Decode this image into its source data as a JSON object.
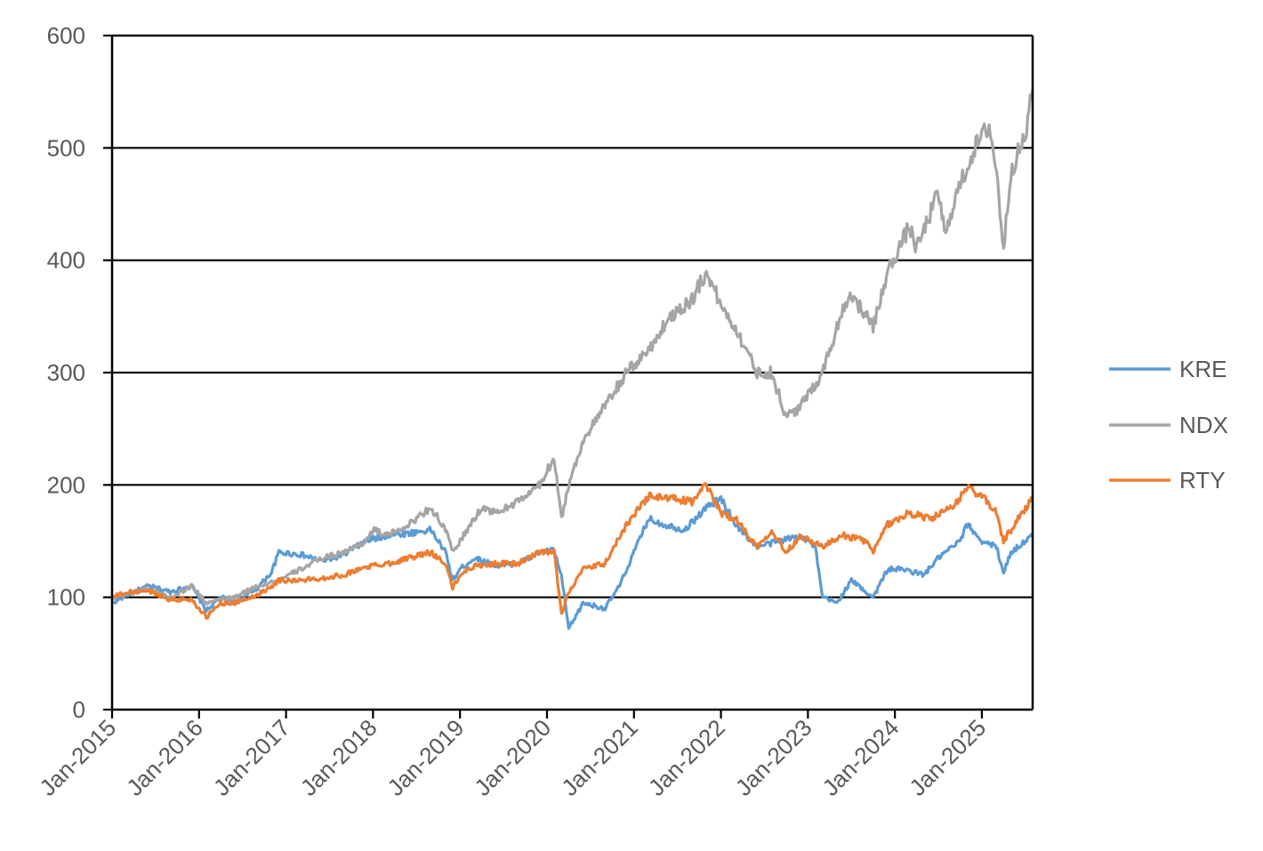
{
  "chart_data": {
    "type": "line",
    "title": "",
    "xlabel": "",
    "ylabel": "",
    "ylim": [
      0,
      600
    ],
    "yticks": [
      0,
      100,
      200,
      300,
      400,
      500,
      600
    ],
    "xlim": [
      "2015-01",
      "2025-08"
    ],
    "xticks": [
      "Jan-2015",
      "Jan-2016",
      "Jan-2017",
      "Jan-2018",
      "Jan-2019",
      "Jan-2020",
      "Jan-2021",
      "Jan-2022",
      "Jan-2023",
      "Jan-2024",
      "Jan-2025"
    ],
    "grid": "horizontal",
    "legend_position": "right",
    "series": [
      {
        "name": "KRE",
        "color": "#5B9BD5",
        "x": [
          "2015-01",
          "2015-03",
          "2015-06",
          "2015-09",
          "2015-12",
          "2016-02",
          "2016-04",
          "2016-06",
          "2016-09",
          "2016-11",
          "2016-12",
          "2017-03",
          "2017-06",
          "2017-09",
          "2017-12",
          "2018-03",
          "2018-06",
          "2018-09",
          "2018-11",
          "2018-12",
          "2019-01",
          "2019-03",
          "2019-06",
          "2019-09",
          "2019-12",
          "2020-02",
          "2020-03",
          "2020-04",
          "2020-06",
          "2020-09",
          "2020-11",
          "2021-01",
          "2021-03",
          "2021-05",
          "2021-08",
          "2021-11",
          "2022-01",
          "2022-03",
          "2022-06",
          "2022-09",
          "2022-12",
          "2023-02",
          "2023-03",
          "2023-05",
          "2023-07",
          "2023-10",
          "2023-12",
          "2024-02",
          "2024-05",
          "2024-07",
          "2024-10",
          "2024-11",
          "2025-01",
          "2025-03",
          "2025-04",
          "2025-05",
          "2025-07",
          "2025-08"
        ],
        "values": [
          95,
          102,
          110,
          105,
          110,
          88,
          100,
          95,
          108,
          122,
          140,
          138,
          132,
          138,
          150,
          155,
          157,
          160,
          140,
          115,
          125,
          135,
          128,
          130,
          140,
          142,
          118,
          72,
          95,
          90,
          110,
          140,
          170,
          165,
          160,
          180,
          188,
          165,
          145,
          150,
          155,
          145,
          100,
          95,
          115,
          100,
          125,
          125,
          120,
          135,
          150,
          165,
          150,
          145,
          122,
          140,
          150,
          155
        ]
      },
      {
        "name": "NDX",
        "color": "#A5A5A5",
        "x": [
          "2015-01",
          "2015-06",
          "2015-09",
          "2015-12",
          "2016-02",
          "2016-06",
          "2016-09",
          "2016-12",
          "2017-03",
          "2017-06",
          "2017-09",
          "2017-12",
          "2018-01",
          "2018-03",
          "2018-06",
          "2018-09",
          "2018-11",
          "2018-12",
          "2019-01",
          "2019-04",
          "2019-06",
          "2019-09",
          "2019-12",
          "2020-02",
          "2020-03",
          "2020-04",
          "2020-06",
          "2020-09",
          "2020-12",
          "2021-03",
          "2021-06",
          "2021-09",
          "2021-11",
          "2022-01",
          "2022-03",
          "2022-06",
          "2022-08",
          "2022-10",
          "2022-12",
          "2023-03",
          "2023-06",
          "2023-07",
          "2023-10",
          "2023-12",
          "2024-03",
          "2024-04",
          "2024-07",
          "2024-08",
          "2024-09",
          "2024-12",
          "2025-02",
          "2025-03",
          "2025-04",
          "2025-05",
          "2025-07",
          "2025-08"
        ],
        "values": [
          100,
          108,
          100,
          110,
          95,
          100,
          110,
          115,
          125,
          135,
          140,
          150,
          160,
          155,
          165,
          180,
          160,
          140,
          150,
          180,
          175,
          185,
          200,
          225,
          170,
          200,
          240,
          270,
          300,
          320,
          350,
          365,
          390,
          360,
          340,
          300,
          300,
          260,
          270,
          300,
          360,
          370,
          340,
          390,
          430,
          410,
          460,
          420,
          450,
          500,
          520,
          480,
          410,
          480,
          510,
          552
        ]
      },
      {
        "name": "RTY",
        "color": "#ED7D31",
        "x": [
          "2015-01",
          "2015-03",
          "2015-06",
          "2015-09",
          "2015-12",
          "2016-02",
          "2016-04",
          "2016-06",
          "2016-09",
          "2016-11",
          "2016-12",
          "2017-03",
          "2017-06",
          "2017-09",
          "2017-12",
          "2018-03",
          "2018-06",
          "2018-09",
          "2018-11",
          "2018-12",
          "2019-01",
          "2019-03",
          "2019-06",
          "2019-09",
          "2019-12",
          "2020-02",
          "2020-03",
          "2020-04",
          "2020-06",
          "2020-09",
          "2020-12",
          "2021-03",
          "2021-06",
          "2021-09",
          "2021-11",
          "2022-01",
          "2022-03",
          "2022-06",
          "2022-08",
          "2022-10",
          "2022-12",
          "2023-03",
          "2023-06",
          "2023-09",
          "2023-10",
          "2023-12",
          "2024-03",
          "2024-06",
          "2024-09",
          "2024-11",
          "2025-01",
          "2025-03",
          "2025-04",
          "2025-06",
          "2025-08"
        ],
        "values": [
          100,
          104,
          106,
          98,
          98,
          82,
          95,
          95,
          102,
          110,
          115,
          115,
          117,
          120,
          127,
          130,
          135,
          140,
          130,
          108,
          120,
          128,
          130,
          130,
          140,
          140,
          85,
          105,
          125,
          130,
          165,
          190,
          188,
          185,
          200,
          175,
          170,
          145,
          160,
          140,
          155,
          145,
          155,
          150,
          140,
          165,
          175,
          170,
          180,
          198,
          190,
          175,
          150,
          170,
          188
        ]
      }
    ]
  }
}
